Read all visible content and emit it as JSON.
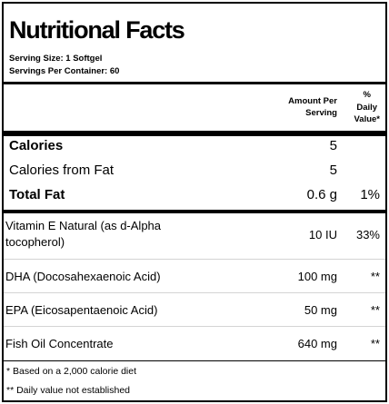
{
  "label": {
    "title": "Nutritional Facts",
    "serving_size": "Serving Size:  1 Softgel",
    "servings_per_container": "Servings Per Container:  60"
  },
  "columns": {
    "amount_line1": "Amount Per",
    "amount_line2": "Serving",
    "dv_line1": "%",
    "dv_line2": "Daily",
    "dv_line3": "Value*"
  },
  "rows": [
    {
      "name": "Calories",
      "amount": "5",
      "dv": ""
    },
    {
      "name": "Calories from Fat",
      "amount": "5",
      "dv": ""
    },
    {
      "name": "Total Fat",
      "amount": "0.6 g",
      "dv": "1%"
    },
    {
      "name_line1": "Vitamin E Natural (as d-Alpha",
      "name_line2": "tocopherol)",
      "amount": "10 IU",
      "dv": "33%"
    },
    {
      "name": "DHA (Docosahexaenoic Acid)",
      "amount": "100 mg",
      "dv": "**"
    },
    {
      "name": "EPA (Eicosapentaenoic Acid)",
      "amount": "50 mg",
      "dv": "**"
    },
    {
      "name": "Fish Oil Concentrate",
      "amount": "640 mg",
      "dv": "**"
    }
  ],
  "footnotes": [
    "* Based on a 2,000 calorie diet",
    "** Daily value not established"
  ]
}
